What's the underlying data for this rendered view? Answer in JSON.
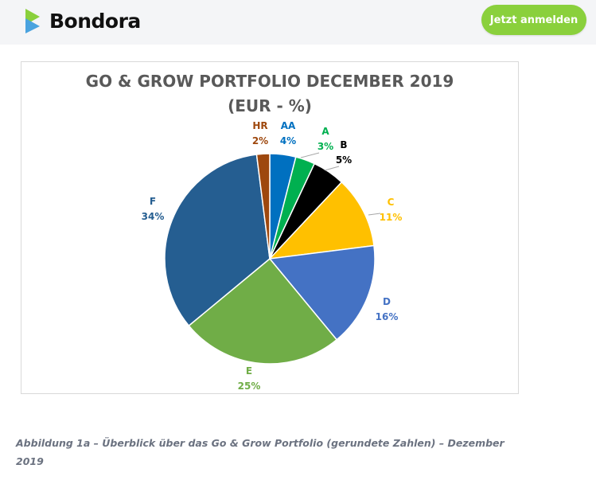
{
  "header": {
    "logo_text": "Bondora",
    "cta_label": "Jetzt anmelden"
  },
  "colors": {
    "brand_green": "#8ad03c",
    "logo_blue": "#4aa3df"
  },
  "chart_data": {
    "type": "pie",
    "title_line1": "GO & GROW PORTFOLIO DECEMBER 2019",
    "title_line2": "(EUR - %)",
    "slices": [
      {
        "label": "AA",
        "value": 4,
        "display": "4%",
        "color": "#0070c0"
      },
      {
        "label": "A",
        "value": 3,
        "display": "3%",
        "color": "#00b050"
      },
      {
        "label": "B",
        "value": 5,
        "display": "5%",
        "color": "#000000"
      },
      {
        "label": "C",
        "value": 11,
        "display": "11%",
        "color": "#ffc000"
      },
      {
        "label": "D",
        "value": 16,
        "display": "16%",
        "color": "#4472c4"
      },
      {
        "label": "E",
        "value": 25,
        "display": "25%",
        "color": "#70ad47"
      },
      {
        "label": "F",
        "value": 34,
        "display": "34%",
        "color": "#255e91"
      },
      {
        "label": "HR",
        "value": 2,
        "display": "2%",
        "color": "#9e480e"
      }
    ]
  },
  "caption": "Abbildung 1a – Überblick über das Go & Grow Portfolio (gerundete Zahlen) – Dezember 2019"
}
